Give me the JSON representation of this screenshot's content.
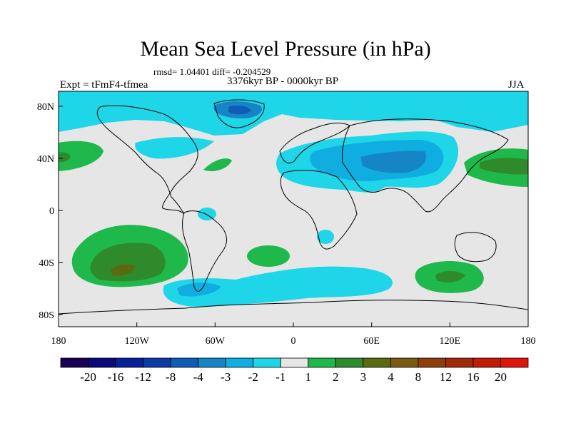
{
  "title": "Mean Sea Level Pressure (in hPa)",
  "stats": "rmsd= 1.04401 diff= -0.204529",
  "experiment": "Expt = tFmF4-tfmea",
  "period": "3376kyr BP - 0000kyr BP",
  "season": "JJA",
  "map": {
    "lon_range": [
      -180,
      180
    ],
    "lat_range": [
      -90,
      90
    ],
    "lon_ticks": [
      "180",
      "120W",
      "60W",
      "0",
      "60E",
      "120E",
      "180"
    ],
    "lat_ticks": [
      "80N",
      "40N",
      "0",
      "40S",
      "80S"
    ],
    "background_color": "#e6e6e6",
    "features": [
      {
        "name": "arctic-negative",
        "level": "-2 to -1"
      },
      {
        "name": "greenland-low",
        "level": "-4 to -3"
      },
      {
        "name": "eurasia-low",
        "level": "-3 to -2"
      },
      {
        "name": "tibet-low",
        "level": "-4 to -3"
      },
      {
        "name": "north-pacific-high",
        "level": "3 to 4"
      },
      {
        "name": "south-pacific-high",
        "level": "3 to 4"
      },
      {
        "name": "south-indian-high",
        "level": "2 to 3"
      },
      {
        "name": "south-atlantic-high",
        "level": "1 to 2"
      },
      {
        "name": "southern-ocean-low",
        "level": "-3 to -2"
      },
      {
        "name": "north-atlantic-high",
        "level": "1 to 2"
      }
    ]
  },
  "colorbar": {
    "labels": [
      "-20",
      "-16",
      "-12",
      "-8",
      "-4",
      "-3",
      "-2",
      "-1",
      "1",
      "2",
      "3",
      "4",
      "8",
      "12",
      "16",
      "20"
    ],
    "colors": [
      "#1a0055",
      "#0a0a7a",
      "#08209a",
      "#0a3aa5",
      "#0f5bb5",
      "#1585c6",
      "#10aee0",
      "#1fd6e8",
      "#e6e6e6",
      "#1fb84a",
      "#2e8a2b",
      "#596a12",
      "#7a5a10",
      "#8e3e0c",
      "#a02a0a",
      "#c01c08",
      "#e0140a"
    ]
  }
}
